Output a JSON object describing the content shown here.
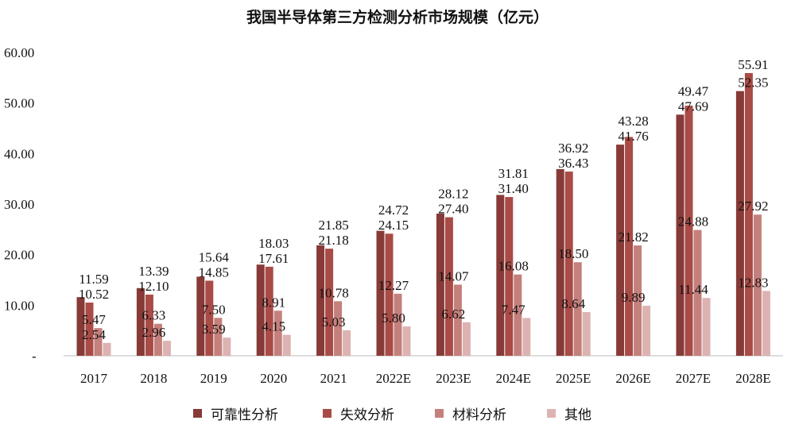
{
  "chart_data": {
    "type": "bar",
    "title": "我国半导体第三方检测分析市场规模（亿元）",
    "xlabel": "",
    "ylabel": "",
    "ylim": [
      0,
      60
    ],
    "yticks": [
      "-",
      "10.00",
      "20.00",
      "30.00",
      "40.00",
      "50.00",
      "60.00"
    ],
    "grid": false,
    "legend_position": "bottom",
    "categories": [
      "2017",
      "2018",
      "2019",
      "2020",
      "2021",
      "2022E",
      "2023E",
      "2024E",
      "2025E",
      "2026E",
      "2027E",
      "2028E"
    ],
    "series": [
      {
        "name": "可靠性分析",
        "color": "#873a37",
        "values": [
          11.59,
          13.39,
          15.64,
          18.03,
          21.85,
          24.72,
          28.12,
          31.81,
          36.92,
          41.76,
          47.69,
          52.35
        ]
      },
      {
        "name": "失效分析",
        "color": "#a94b46",
        "values": [
          10.52,
          12.1,
          14.85,
          17.61,
          21.18,
          24.15,
          27.4,
          31.4,
          36.43,
          43.28,
          49.47,
          55.91
        ]
      },
      {
        "name": "材料分析",
        "color": "#c4807c",
        "values": [
          5.47,
          6.33,
          7.5,
          8.91,
          10.78,
          12.27,
          14.07,
          16.08,
          18.5,
          21.82,
          24.88,
          27.92
        ]
      },
      {
        "name": "其他",
        "color": "#dcb3b1",
        "values": [
          2.54,
          2.96,
          3.59,
          4.15,
          5.03,
          5.8,
          6.62,
          7.47,
          8.64,
          9.89,
          11.44,
          12.83
        ]
      }
    ]
  }
}
